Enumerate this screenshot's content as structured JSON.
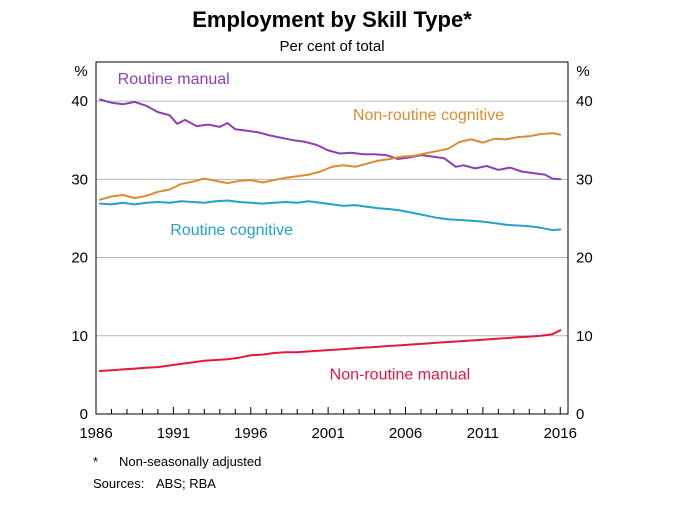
{
  "chart_data": {
    "type": "line",
    "title": "Employment by Skill Type*",
    "subtitle": "Per cent of total",
    "y_unit_left": "%",
    "y_unit_right": "%",
    "ylim": [
      0,
      45
    ],
    "y_ticks": [
      0,
      10,
      20,
      30,
      40
    ],
    "xlim": [
      1986,
      2016.5
    ],
    "x_ticks": [
      1986,
      1991,
      1996,
      2001,
      2006,
      2011,
      2016
    ],
    "grid": true,
    "series": [
      {
        "name": "Routine manual",
        "color": "#8e3fb5",
        "x": [
          1986.25,
          1987,
          1987.75,
          1988.5,
          1989.25,
          1990,
          1990.75,
          1991.25,
          1991.75,
          1992.5,
          1993.25,
          1994,
          1994.5,
          1995,
          1995.75,
          1996.5,
          1997.25,
          1998,
          1998.75,
          1999.5,
          2000.25,
          2001,
          2001.75,
          2002.5,
          2003.25,
          2004,
          2004.75,
          2005.5,
          2006.25,
          2007,
          2007.75,
          2008.5,
          2009.25,
          2009.75,
          2010.5,
          2011.25,
          2012,
          2012.75,
          2013.5,
          2014.25,
          2015,
          2015.5,
          2016
        ],
        "values": [
          40.2,
          39.8,
          39.6,
          39.9,
          39.4,
          38.6,
          38.2,
          37.1,
          37.6,
          36.8,
          37.0,
          36.7,
          37.2,
          36.4,
          36.2,
          36.0,
          35.6,
          35.3,
          35.0,
          34.8,
          34.4,
          33.7,
          33.3,
          33.4,
          33.2,
          33.2,
          33.1,
          32.6,
          32.8,
          33.1,
          32.9,
          32.7,
          31.6,
          31.8,
          31.4,
          31.7,
          31.2,
          31.5,
          31.0,
          30.8,
          30.6,
          30.1,
          30.0
        ]
      },
      {
        "name": "Non-routine cognitive",
        "color": "#de8b2f",
        "x": [
          1986.25,
          1987,
          1987.75,
          1988.5,
          1989.25,
          1990,
          1990.75,
          1991.5,
          1992.25,
          1993,
          1993.75,
          1994.5,
          1995.25,
          1996,
          1996.75,
          1997.5,
          1998.25,
          1999,
          1999.75,
          2000.5,
          2001.25,
          2002,
          2002.75,
          2003.5,
          2004.25,
          2005,
          2005.75,
          2006.5,
          2007.25,
          2008,
          2008.75,
          2009.5,
          2010.25,
          2011,
          2011.75,
          2012.5,
          2013.25,
          2014,
          2014.75,
          2015.5,
          2016
        ],
        "values": [
          27.4,
          27.8,
          28.0,
          27.6,
          27.9,
          28.4,
          28.7,
          29.4,
          29.7,
          30.1,
          29.8,
          29.5,
          29.8,
          29.9,
          29.6,
          29.9,
          30.2,
          30.4,
          30.6,
          31.0,
          31.6,
          31.8,
          31.6,
          32.0,
          32.4,
          32.6,
          32.9,
          33.0,
          33.3,
          33.6,
          33.9,
          34.8,
          35.1,
          34.7,
          35.2,
          35.1,
          35.4,
          35.5,
          35.8,
          35.9,
          35.7
        ]
      },
      {
        "name": "Routine cognitive",
        "color": "#21a3c9",
        "x": [
          1986.25,
          1987,
          1987.75,
          1988.5,
          1989.25,
          1990,
          1990.75,
          1991.5,
          1992.25,
          1993,
          1993.75,
          1994.5,
          1995.25,
          1996,
          1996.75,
          1997.5,
          1998.25,
          1999,
          1999.75,
          2000.5,
          2001.25,
          2002,
          2002.75,
          2003.5,
          2004.25,
          2005,
          2005.75,
          2006.5,
          2007.25,
          2008,
          2008.75,
          2009.5,
          2010.25,
          2011,
          2011.75,
          2012.5,
          2013.25,
          2014,
          2014.75,
          2015.5,
          2016
        ],
        "values": [
          26.9,
          26.8,
          27.0,
          26.8,
          27.0,
          27.1,
          27.0,
          27.2,
          27.1,
          27.0,
          27.2,
          27.3,
          27.1,
          27.0,
          26.9,
          27.0,
          27.1,
          27.0,
          27.2,
          27.0,
          26.8,
          26.6,
          26.7,
          26.5,
          26.3,
          26.2,
          26.0,
          25.7,
          25.4,
          25.1,
          24.9,
          24.8,
          24.7,
          24.6,
          24.4,
          24.2,
          24.1,
          24.0,
          23.8,
          23.5,
          23.6
        ]
      },
      {
        "name": "Non-routine manual",
        "color": "#e3193f",
        "x": [
          1986.25,
          1987,
          1987.75,
          1988.5,
          1989.25,
          1990,
          1990.75,
          1991.5,
          1992.25,
          1993,
          1993.75,
          1994.5,
          1995.25,
          1996,
          1996.75,
          1997.5,
          1998.25,
          1999,
          1999.75,
          2000.5,
          2001.25,
          2002,
          2002.75,
          2003.5,
          2004.25,
          2005,
          2005.75,
          2006.5,
          2007.25,
          2008,
          2008.75,
          2009.5,
          2010.25,
          2011,
          2011.75,
          2012.5,
          2013.25,
          2014,
          2014.75,
          2015.5,
          2016
        ],
        "values": [
          5.5,
          5.6,
          5.7,
          5.8,
          5.9,
          6.0,
          6.2,
          6.4,
          6.6,
          6.8,
          6.9,
          7.0,
          7.2,
          7.5,
          7.6,
          7.8,
          7.9,
          7.9,
          8.0,
          8.1,
          8.2,
          8.3,
          8.4,
          8.5,
          8.6,
          8.7,
          8.8,
          8.9,
          9.0,
          9.1,
          9.2,
          9.3,
          9.4,
          9.5,
          9.6,
          9.7,
          9.8,
          9.9,
          10.0,
          10.2,
          10.7
        ]
      }
    ],
    "series_labels": [
      {
        "text": "Routine manual",
        "color": "#8e3fb5",
        "x": 1987.4,
        "y": 42.2,
        "anchor": "start"
      },
      {
        "text": "Non-routine cognitive",
        "color": "#de8b2f",
        "x": 2002.6,
        "y": 37.6,
        "anchor": "start"
      },
      {
        "text": "Routine cognitive",
        "color": "#21a3c9",
        "x": 1990.8,
        "y": 22.9,
        "anchor": "start"
      },
      {
        "text": "Non-routine manual",
        "color": "#e3193f",
        "x": 2001.1,
        "y": 4.4,
        "anchor": "start"
      }
    ]
  },
  "footnote": {
    "marker": "*",
    "text": "Non-seasonally adjusted"
  },
  "sources": {
    "label": "Sources:",
    "text": "ABS; RBA"
  }
}
